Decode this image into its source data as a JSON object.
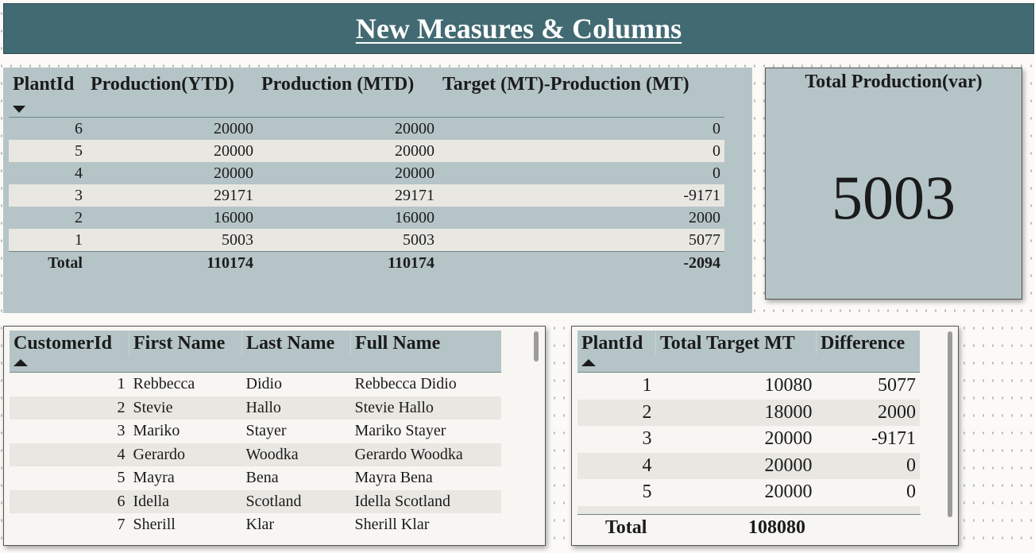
{
  "header": {
    "title": "New Measures & Columns"
  },
  "production_table": {
    "columns": [
      "PlantId",
      "Production(YTD)",
      "Production (MTD)",
      "Target (MT)-Production (MT)"
    ],
    "rows": [
      [
        "6",
        "20000",
        "20000",
        "0"
      ],
      [
        "5",
        "20000",
        "20000",
        "0"
      ],
      [
        "4",
        "20000",
        "20000",
        "0"
      ],
      [
        "3",
        "29171",
        "29171",
        "-9171"
      ],
      [
        "2",
        "16000",
        "16000",
        "2000"
      ],
      [
        "1",
        "5003",
        "5003",
        "5077"
      ]
    ],
    "total": [
      "Total",
      "110174",
      "110174",
      "-2094"
    ]
  },
  "card": {
    "title": "Total Production(var)",
    "value": "5003"
  },
  "customer_table": {
    "columns": [
      "CustomerId",
      "First Name",
      "Last Name",
      "Full Name"
    ],
    "rows": [
      [
        "1",
        "Rebbecca",
        "Didio",
        "Rebbecca Didio"
      ],
      [
        "2",
        "Stevie",
        "Hallo",
        "Stevie Hallo"
      ],
      [
        "3",
        "Mariko",
        "Stayer",
        "Mariko Stayer"
      ],
      [
        "4",
        "Gerardo",
        "Woodka",
        "Gerardo Woodka"
      ],
      [
        "5",
        "Mayra",
        "Bena",
        "Mayra Bena"
      ],
      [
        "6",
        "Idella",
        "Scotland",
        "Idella Scotland"
      ],
      [
        "7",
        "Sherill",
        "Klar",
        "Sherill Klar"
      ]
    ]
  },
  "target_table": {
    "columns": [
      "PlantId",
      "Total Target MT",
      "Difference"
    ],
    "rows": [
      [
        "1",
        "10080",
        "5077"
      ],
      [
        "2",
        "18000",
        "2000"
      ],
      [
        "3",
        "20000",
        "-9171"
      ],
      [
        "4",
        "20000",
        "0"
      ],
      [
        "5",
        "20000",
        "0"
      ]
    ],
    "total": [
      "Total",
      "108080",
      ""
    ]
  },
  "colors": {
    "header_bg": "#426a72",
    "panel_bg": "#b5c4c7",
    "alt_row": "#e8e7e2",
    "canvas_bg": "#fbfaf7"
  },
  "icons": {
    "sort_descending": "sort-descending-icon",
    "sort_ascending": "sort-ascending-icon"
  }
}
